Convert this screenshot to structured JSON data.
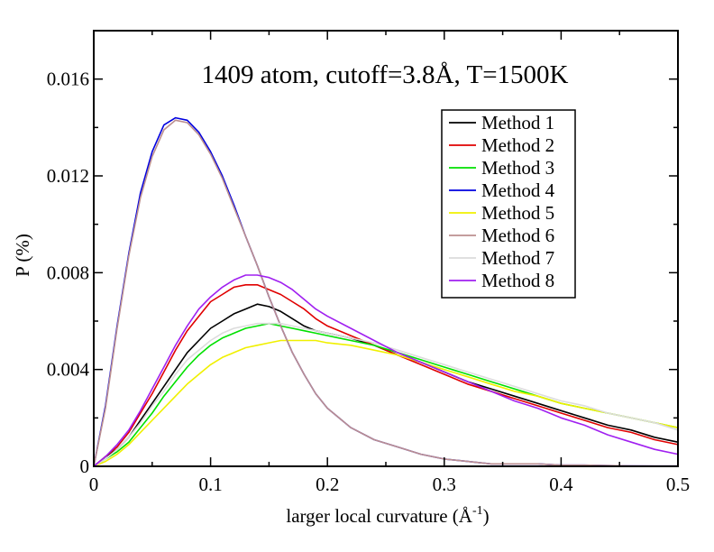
{
  "chart_data": {
    "type": "line",
    "title": "1409 atom, cutoff=3.8Å, T=1500K",
    "xlabel": "larger local curvature (Å",
    "xlabel_sup": "-1",
    "xlabel_close": ")",
    "ylabel": "P (%)",
    "xlim": [
      0,
      0.5
    ],
    "ylim": [
      0,
      0.018
    ],
    "x_ticks": [
      0,
      0.1,
      0.2,
      0.3,
      0.4,
      0.5
    ],
    "x_tick_labels": [
      "0",
      "0.1",
      "0.2",
      "0.3",
      "0.4",
      "0.5"
    ],
    "y_ticks": [
      0,
      0.004,
      0.008,
      0.012,
      0.016
    ],
    "y_tick_labels": [
      "0",
      "0.004",
      "0.008",
      "0.012",
      "0.016"
    ],
    "grid": false,
    "legend_position": "top-right",
    "series": [
      {
        "name": "Method 1",
        "color": "#000000",
        "x": [
          0,
          0.01,
          0.02,
          0.03,
          0.04,
          0.05,
          0.06,
          0.07,
          0.08,
          0.09,
          0.1,
          0.11,
          0.12,
          0.13,
          0.14,
          0.15,
          0.16,
          0.17,
          0.18,
          0.19,
          0.2,
          0.22,
          0.24,
          0.26,
          0.28,
          0.3,
          0.32,
          0.34,
          0.36,
          0.38,
          0.4,
          0.42,
          0.44,
          0.46,
          0.48,
          0.5
        ],
        "y": [
          0,
          0.0004,
          0.0007,
          0.0012,
          0.0019,
          0.0026,
          0.0033,
          0.004,
          0.0047,
          0.0052,
          0.0057,
          0.006,
          0.0063,
          0.0065,
          0.0067,
          0.0066,
          0.0064,
          0.0061,
          0.0058,
          0.0056,
          0.0055,
          0.0053,
          0.005,
          0.0046,
          0.0043,
          0.0039,
          0.0035,
          0.0032,
          0.0029,
          0.0026,
          0.0023,
          0.002,
          0.0017,
          0.0015,
          0.0012,
          0.001
        ]
      },
      {
        "name": "Method 2",
        "color": "#e00000",
        "x": [
          0,
          0.01,
          0.02,
          0.03,
          0.04,
          0.05,
          0.06,
          0.07,
          0.08,
          0.09,
          0.1,
          0.11,
          0.12,
          0.13,
          0.14,
          0.15,
          0.16,
          0.17,
          0.18,
          0.19,
          0.2,
          0.22,
          0.24,
          0.26,
          0.28,
          0.3,
          0.32,
          0.34,
          0.36,
          0.38,
          0.4,
          0.42,
          0.44,
          0.46,
          0.48,
          0.5
        ],
        "y": [
          0,
          0.0004,
          0.0008,
          0.0014,
          0.0022,
          0.003,
          0.0039,
          0.0048,
          0.0056,
          0.0062,
          0.0068,
          0.0071,
          0.0074,
          0.0075,
          0.0075,
          0.0073,
          0.0071,
          0.0068,
          0.0065,
          0.0061,
          0.0058,
          0.0054,
          0.005,
          0.0046,
          0.0042,
          0.0038,
          0.0034,
          0.0031,
          0.0028,
          0.0025,
          0.0022,
          0.0019,
          0.0016,
          0.0014,
          0.0011,
          0.0009
        ]
      },
      {
        "name": "Method 3",
        "color": "#00e000",
        "x": [
          0,
          0.01,
          0.02,
          0.03,
          0.04,
          0.05,
          0.06,
          0.07,
          0.08,
          0.09,
          0.1,
          0.11,
          0.12,
          0.13,
          0.14,
          0.15,
          0.16,
          0.17,
          0.18,
          0.19,
          0.2,
          0.22,
          0.24,
          0.26,
          0.28,
          0.3,
          0.32,
          0.34,
          0.36,
          0.38,
          0.4,
          0.42,
          0.44,
          0.46,
          0.48,
          0.5
        ],
        "y": [
          0,
          0.0003,
          0.0006,
          0.001,
          0.0016,
          0.0022,
          0.0029,
          0.0035,
          0.0041,
          0.0046,
          0.005,
          0.0053,
          0.0055,
          0.0057,
          0.0058,
          0.0059,
          0.0058,
          0.0057,
          0.0056,
          0.0055,
          0.0054,
          0.0052,
          0.005,
          0.0047,
          0.0044,
          0.0041,
          0.0038,
          0.0035,
          0.0032,
          0.0029,
          0.0026,
          0.0024,
          0.0022,
          0.002,
          0.0018,
          0.0016
        ]
      },
      {
        "name": "Method 4",
        "color": "#0000e0",
        "x": [
          0,
          0.01,
          0.02,
          0.03,
          0.04,
          0.05,
          0.06,
          0.07,
          0.08,
          0.09,
          0.1,
          0.11,
          0.12,
          0.13,
          0.14,
          0.15,
          0.16,
          0.17,
          0.18,
          0.19,
          0.2,
          0.22,
          0.24,
          0.26,
          0.28,
          0.3,
          0.32,
          0.34,
          0.36,
          0.38,
          0.4,
          0.42,
          0.44,
          0.46,
          0.48,
          0.5
        ],
        "y": [
          0,
          0.0025,
          0.0058,
          0.0088,
          0.0113,
          0.013,
          0.0141,
          0.0144,
          0.0143,
          0.0138,
          0.013,
          0.012,
          0.0108,
          0.0095,
          0.0083,
          0.007,
          0.0058,
          0.0047,
          0.0038,
          0.003,
          0.0024,
          0.0016,
          0.0011,
          0.0008,
          0.0005,
          0.0003,
          0.0002,
          0.0001,
          0.0001,
          0.0001,
          5e-05,
          5e-05,
          3e-05,
          2e-05,
          1e-05,
          1e-05
        ]
      },
      {
        "name": "Method 5",
        "color": "#f0f000",
        "x": [
          0,
          0.01,
          0.02,
          0.03,
          0.04,
          0.05,
          0.06,
          0.07,
          0.08,
          0.09,
          0.1,
          0.11,
          0.12,
          0.13,
          0.14,
          0.15,
          0.16,
          0.17,
          0.18,
          0.19,
          0.2,
          0.22,
          0.24,
          0.26,
          0.28,
          0.3,
          0.32,
          0.34,
          0.36,
          0.38,
          0.4,
          0.42,
          0.44,
          0.46,
          0.48,
          0.5
        ],
        "y": [
          0,
          0.0002,
          0.0005,
          0.0009,
          0.0014,
          0.0019,
          0.0024,
          0.0029,
          0.0034,
          0.0038,
          0.0042,
          0.0045,
          0.0047,
          0.0049,
          0.005,
          0.0051,
          0.0052,
          0.0052,
          0.0052,
          0.0052,
          0.0051,
          0.005,
          0.0048,
          0.0046,
          0.0043,
          0.004,
          0.0037,
          0.0034,
          0.0031,
          0.0029,
          0.0026,
          0.0024,
          0.0022,
          0.002,
          0.0018,
          0.0016
        ]
      },
      {
        "name": "Method 6",
        "color": "#bc8f8f",
        "x": [
          0,
          0.01,
          0.02,
          0.03,
          0.04,
          0.05,
          0.06,
          0.07,
          0.08,
          0.09,
          0.1,
          0.11,
          0.12,
          0.13,
          0.14,
          0.15,
          0.16,
          0.17,
          0.18,
          0.19,
          0.2,
          0.22,
          0.24,
          0.26,
          0.28,
          0.3,
          0.32,
          0.34,
          0.36,
          0.38,
          0.4,
          0.42,
          0.44,
          0.46,
          0.48,
          0.5
        ],
        "y": [
          0,
          0.0024,
          0.0057,
          0.0087,
          0.0111,
          0.0128,
          0.0139,
          0.0143,
          0.0142,
          0.0137,
          0.0129,
          0.0119,
          0.0107,
          0.0095,
          0.0083,
          0.007,
          0.0058,
          0.0047,
          0.0038,
          0.003,
          0.0024,
          0.0016,
          0.0011,
          0.0008,
          0.0005,
          0.0003,
          0.0002,
          0.0001,
          0.0001,
          0.0001,
          5e-05,
          5e-05,
          3e-05,
          2e-05,
          1e-05,
          1e-05
        ]
      },
      {
        "name": "Method 7",
        "color": "#dcdcdc",
        "x": [
          0,
          0.01,
          0.02,
          0.03,
          0.04,
          0.05,
          0.06,
          0.07,
          0.08,
          0.09,
          0.1,
          0.11,
          0.12,
          0.13,
          0.14,
          0.15,
          0.16,
          0.17,
          0.18,
          0.19,
          0.2,
          0.22,
          0.24,
          0.26,
          0.28,
          0.3,
          0.32,
          0.34,
          0.36,
          0.38,
          0.4,
          0.42,
          0.44,
          0.46,
          0.48,
          0.5
        ],
        "y": [
          0,
          0.0003,
          0.0007,
          0.0012,
          0.0018,
          0.0025,
          0.0031,
          0.0038,
          0.0044,
          0.0048,
          0.0052,
          0.0055,
          0.0057,
          0.0058,
          0.0059,
          0.0059,
          0.0059,
          0.0058,
          0.0057,
          0.0056,
          0.0055,
          0.0053,
          0.0051,
          0.0048,
          0.0045,
          0.0042,
          0.0039,
          0.0036,
          0.0033,
          0.003,
          0.0027,
          0.0025,
          0.0022,
          0.002,
          0.0018,
          0.0015
        ]
      },
      {
        "name": "Method 8",
        "color": "#a020f0",
        "x": [
          0,
          0.01,
          0.02,
          0.03,
          0.04,
          0.05,
          0.06,
          0.07,
          0.08,
          0.09,
          0.1,
          0.11,
          0.12,
          0.13,
          0.14,
          0.15,
          0.16,
          0.17,
          0.18,
          0.19,
          0.2,
          0.22,
          0.24,
          0.26,
          0.28,
          0.3,
          0.32,
          0.34,
          0.36,
          0.38,
          0.4,
          0.42,
          0.44,
          0.46,
          0.48,
          0.5
        ],
        "y": [
          0,
          0.0004,
          0.0009,
          0.0015,
          0.0023,
          0.0032,
          0.0041,
          0.005,
          0.0058,
          0.0065,
          0.007,
          0.0074,
          0.0077,
          0.0079,
          0.0079,
          0.0078,
          0.0076,
          0.0073,
          0.0069,
          0.0065,
          0.0062,
          0.0057,
          0.0052,
          0.0047,
          0.0043,
          0.0039,
          0.0035,
          0.0031,
          0.0027,
          0.0024,
          0.002,
          0.0017,
          0.0013,
          0.001,
          0.0007,
          0.0005
        ]
      }
    ]
  }
}
